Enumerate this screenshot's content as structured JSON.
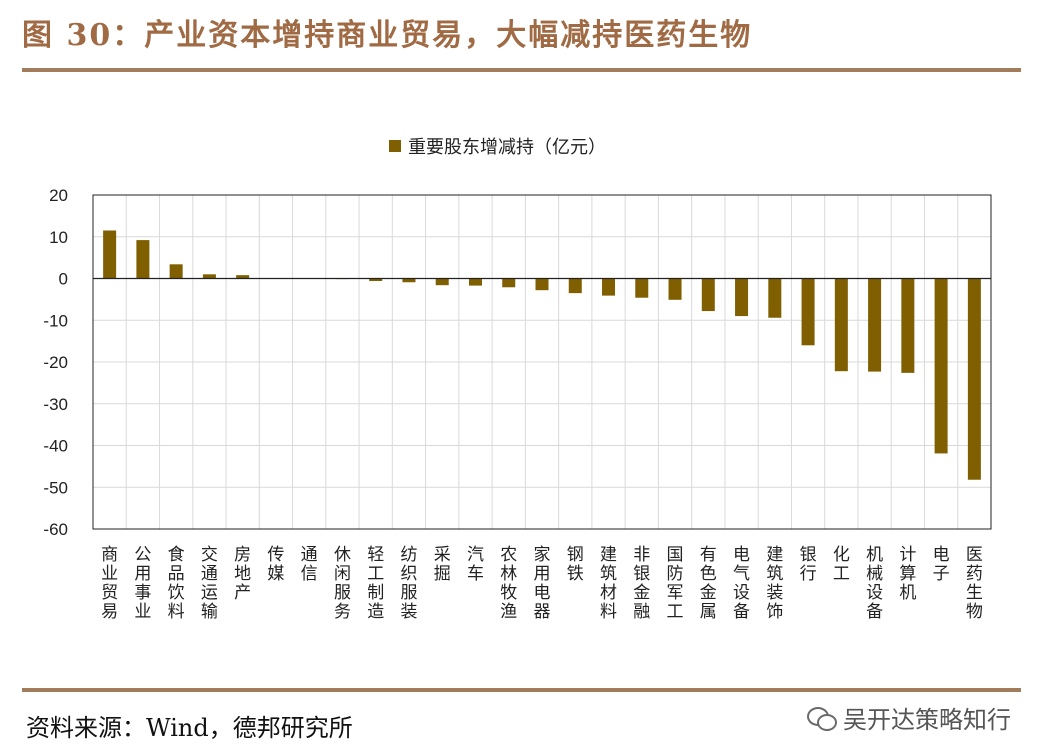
{
  "title": "图 30：产业资本增持商业贸易，大幅减持医药生物",
  "source": "资料来源：Wind，德邦研究所",
  "watermark": "吴开达策略知行",
  "chart_data": {
    "type": "bar",
    "categories": [
      "商业贸易",
      "公用事业",
      "食品饮料",
      "交通运输",
      "房地产",
      "传媒",
      "通信",
      "休闲服务",
      "轻工制造",
      "纺织服装",
      "采掘",
      "汽车",
      "农林牧渔",
      "家用电器",
      "钢铁",
      "建筑材料",
      "非银金融",
      "国防军工",
      "有色金属",
      "电气设备",
      "建筑装饰",
      "银行",
      "化工",
      "机械设备",
      "计算机",
      "电子",
      "医药生物"
    ],
    "series": [
      {
        "name": "重要股东增减持（亿元）",
        "values": [
          11.5,
          9.2,
          3.4,
          1.0,
          0.8,
          0.1,
          0.05,
          -0.1,
          -0.6,
          -0.9,
          -1.6,
          -1.7,
          -2.1,
          -2.8,
          -3.5,
          -4.1,
          -4.6,
          -5.1,
          -7.8,
          -9.0,
          -9.4,
          -16.0,
          -22.2,
          -22.3,
          -22.6,
          -41.9,
          -48.2
        ],
        "color": "#7f5f00"
      }
    ],
    "ylim": [
      -60,
      20
    ],
    "yticks": [
      20,
      10,
      0,
      -10,
      -20,
      -30,
      -40,
      -50,
      -60
    ],
    "grid": true,
    "legend_position": "top-center"
  }
}
